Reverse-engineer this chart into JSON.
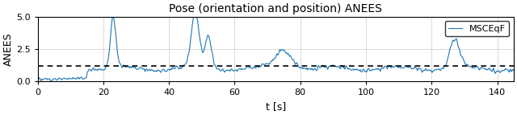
{
  "title": "Pose (orientation and position) ANEES",
  "xlabel": "t [s]",
  "ylabel": "ANEES",
  "xlim": [
    0,
    145
  ],
  "ylim": [
    0.0,
    5.0
  ],
  "xticks": [
    0,
    20,
    40,
    60,
    80,
    100,
    120,
    140
  ],
  "yticks": [
    0.0,
    2.5,
    5.0
  ],
  "dashed_line_y": 1.2,
  "line_color": "#1f77b4",
  "legend_label": "MSCEqF",
  "background_color": "#ffffff",
  "grid_color": "#cccccc"
}
